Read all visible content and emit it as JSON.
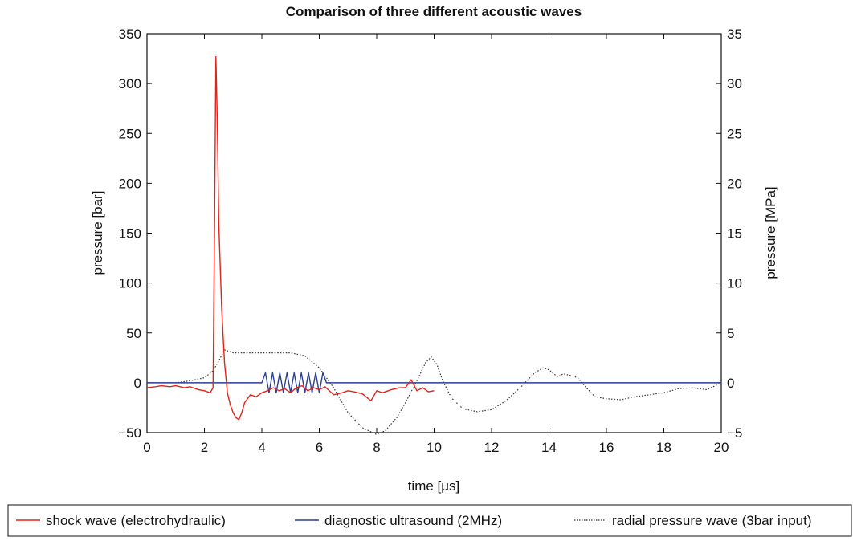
{
  "chart_data": {
    "type": "line",
    "title": "Comparison of three different acoustic waves",
    "xlabel": "time [μs]",
    "ylabel_left": "pressure [bar]",
    "ylabel_right": "pressure [MPa]",
    "xlim": [
      0,
      20
    ],
    "ylim_left": [
      -50,
      350
    ],
    "ylim_right": [
      -5,
      35
    ],
    "xticks": [
      0,
      2,
      4,
      6,
      8,
      10,
      12,
      14,
      16,
      18,
      20
    ],
    "xtick_labels": [
      "0",
      "2",
      "4",
      "6",
      "8",
      "10",
      "12",
      "14",
      "16",
      "18",
      "20"
    ],
    "yticks_left": [
      -50,
      0,
      50,
      100,
      150,
      200,
      250,
      300,
      350
    ],
    "ytick_labels_left": [
      "−50",
      "0",
      "50",
      "100",
      "150",
      "200",
      "250",
      "300",
      "350"
    ],
    "yticks_right": [
      -5,
      0,
      5,
      10,
      15,
      20,
      25,
      30,
      35
    ],
    "ytick_labels_right": [
      "−5",
      "0",
      "5",
      "10",
      "15",
      "20",
      "25",
      "30",
      "35"
    ],
    "grid": false,
    "legend_position": "bottom",
    "series": [
      {
        "name": "shock wave (electrohydraulic)",
        "color": "#e2231a",
        "style": "solid",
        "x": [
          0,
          0.3,
          0.5,
          0.8,
          1.0,
          1.3,
          1.5,
          1.8,
          2.0,
          2.2,
          2.3,
          2.35,
          2.4,
          2.45,
          2.5,
          2.6,
          2.7,
          2.8,
          2.9,
          3.0,
          3.1,
          3.2,
          3.3,
          3.4,
          3.6,
          3.8,
          4.0,
          4.2,
          4.4,
          4.6,
          4.8,
          5.0,
          5.2,
          5.4,
          5.6,
          5.8,
          6.0,
          6.2,
          6.5,
          6.8,
          7.0,
          7.2,
          7.5,
          7.8,
          8.0,
          8.2,
          8.5,
          8.8,
          9.0,
          9.2,
          9.4,
          9.6,
          9.8,
          10.0
        ],
        "y": [
          -5,
          -4,
          -3,
          -4,
          -3,
          -5,
          -4,
          -7,
          -8,
          -10,
          -5,
          150,
          327,
          260,
          160,
          75,
          20,
          -10,
          -22,
          -30,
          -35,
          -37,
          -30,
          -20,
          -12,
          -14,
          -10,
          -8,
          -5,
          -8,
          -6,
          -10,
          -5,
          -3,
          -8,
          -5,
          -7,
          -4,
          -12,
          -10,
          -8,
          -9,
          -11,
          -18,
          -8,
          -10,
          -7,
          -5,
          -5,
          3,
          -8,
          -5,
          -9,
          -8
        ]
      },
      {
        "name": "diagnostic ultrasound (2MHz)",
        "color": "#2b3f93",
        "style": "solid",
        "x": [
          0,
          4.0,
          4.125,
          4.25,
          4.375,
          4.5,
          4.625,
          4.75,
          4.875,
          5.0,
          5.125,
          5.25,
          5.375,
          5.5,
          5.625,
          5.75,
          5.875,
          6.0,
          6.125,
          6.25,
          20
        ],
        "y": [
          0,
          0,
          10,
          -10,
          10,
          -10,
          10,
          -10,
          10,
          -10,
          10,
          -10,
          10,
          -10,
          10,
          -10,
          10,
          -10,
          10,
          0,
          0
        ]
      },
      {
        "name": "radial pressure wave (3bar input)",
        "color": "#333333",
        "style": "dotted",
        "axis": "right",
        "x": [
          0,
          1.0,
          1.5,
          2.0,
          2.3,
          2.5,
          2.7,
          3.0,
          3.5,
          4.0,
          5.0,
          5.5,
          6.0,
          6.5,
          7.0,
          7.5,
          8.0,
          8.3,
          8.7,
          9.0,
          9.4,
          9.7,
          9.9,
          10.1,
          10.3,
          10.6,
          11.0,
          11.5,
          12.0,
          12.5,
          13.0,
          13.5,
          13.8,
          14.0,
          14.3,
          14.5,
          14.8,
          15.0,
          15.3,
          15.6,
          16.0,
          16.5,
          17.0,
          17.5,
          18.0,
          18.5,
          19.0,
          19.5,
          20.0
        ],
        "y": [
          0,
          0,
          0.2,
          0.5,
          1.2,
          2.2,
          3.3,
          3.0,
          3.0,
          3.0,
          3.0,
          2.7,
          1.5,
          -0.5,
          -3.0,
          -4.5,
          -5.2,
          -4.8,
          -3.5,
          -2.0,
          0.2,
          2.0,
          2.6,
          1.8,
          0.2,
          -1.5,
          -2.6,
          -2.9,
          -2.7,
          -1.8,
          -0.5,
          1.0,
          1.5,
          1.3,
          0.6,
          0.9,
          0.7,
          0.5,
          -0.5,
          -1.4,
          -1.6,
          -1.7,
          -1.4,
          -1.2,
          -1.0,
          -0.6,
          -0.5,
          -0.7,
          0.0
        ]
      }
    ]
  }
}
